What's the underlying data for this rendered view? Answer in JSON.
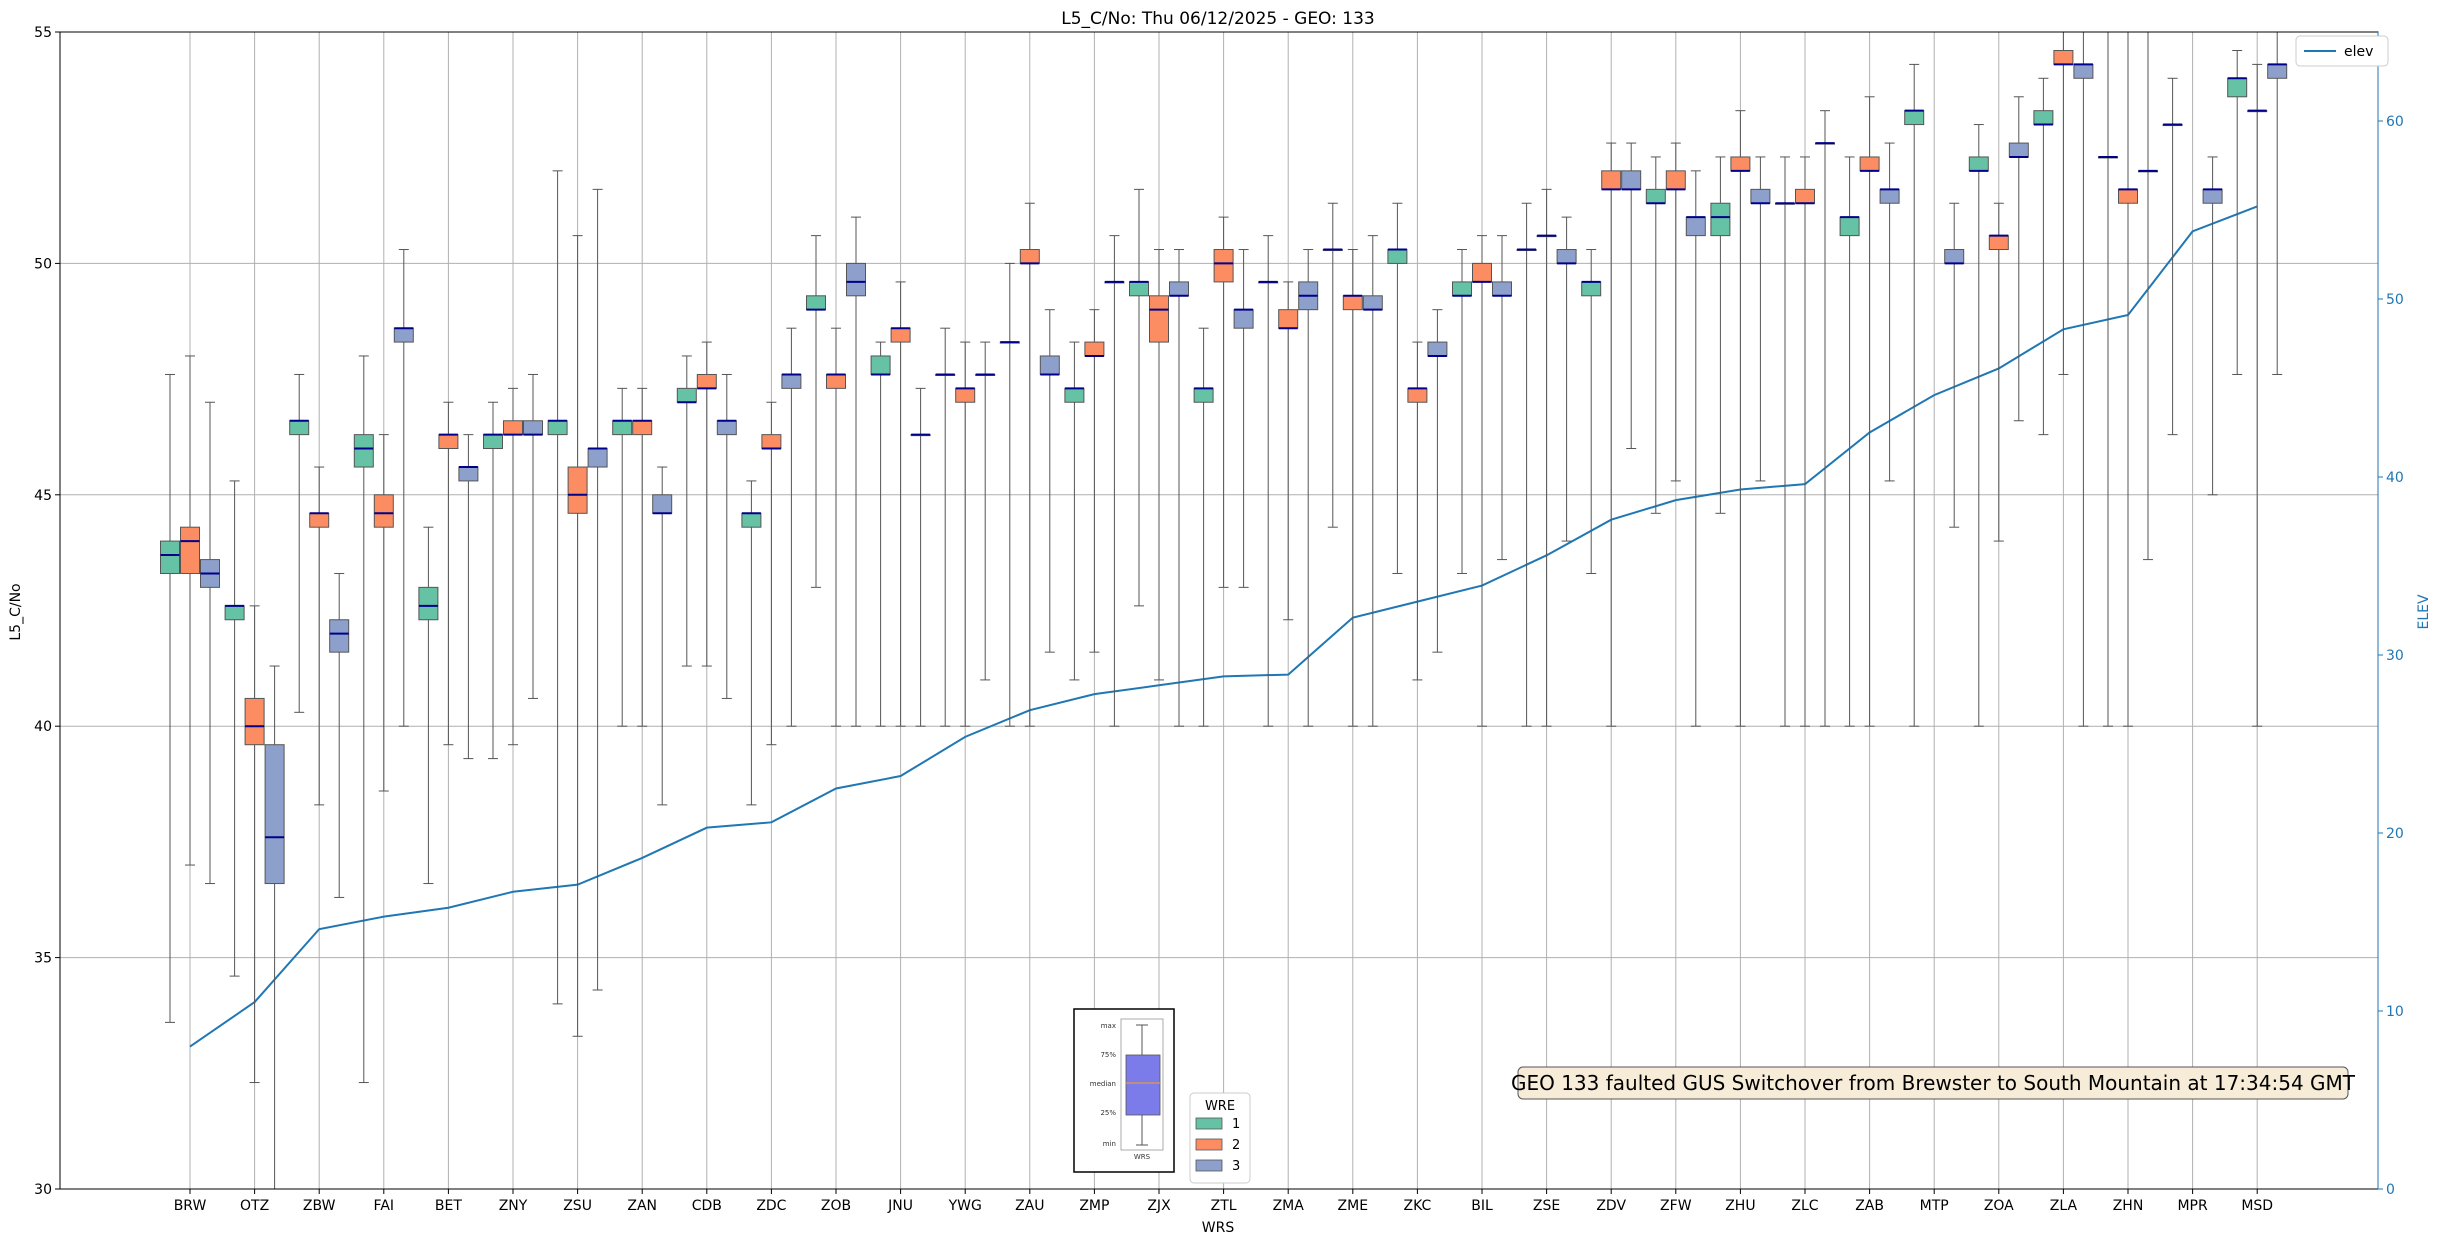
{
  "chart_data": {
    "type": "box",
    "title": "L5_C/No: Thu 06/12/2025 - GEO: 133",
    "xlabel": "WRS",
    "ylabel": "L5_C/No",
    "ylabel_right": "ELEV",
    "ylim": [
      30,
      55
    ],
    "ylim_right": [
      0,
      65
    ],
    "yticks": [
      30,
      35,
      40,
      45,
      50,
      55
    ],
    "yticks_right": [
      0,
      10,
      20,
      30,
      40,
      50,
      60
    ],
    "grid": true,
    "categories": [
      "BRW",
      "OTZ",
      "ZBW",
      "FAI",
      "BET",
      "ZNY",
      "ZSU",
      "ZAN",
      "CDB",
      "ZDC",
      "ZOB",
      "JNU",
      "YWG",
      "ZAU",
      "ZMP",
      "ZJX",
      "ZTL",
      "ZMA",
      "ZME",
      "ZKC",
      "BIL",
      "ZSE",
      "ZDV",
      "ZFW",
      "ZHU",
      "ZLC",
      "ZAB",
      "MTP",
      "ZOA",
      "ZLA",
      "ZHN",
      "MPR",
      "MSD"
    ],
    "wre_colors": {
      "1": "#66c2a5",
      "2": "#fc8d62",
      "3": "#8da0cb"
    },
    "median_color": "#00008b",
    "boxes": [
      {
        "wrs": "BRW",
        "wre": 1,
        "min": 33.6,
        "q1": 43.3,
        "median": 43.7,
        "q3": 44.0,
        "max": 47.6
      },
      {
        "wrs": "BRW",
        "wre": 2,
        "min": 37.0,
        "q1": 43.3,
        "median": 44.0,
        "q3": 44.3,
        "max": 48.0
      },
      {
        "wrs": "BRW",
        "wre": 3,
        "min": 36.6,
        "q1": 43.0,
        "median": 43.3,
        "q3": 43.6,
        "max": 47.0
      },
      {
        "wrs": "OTZ",
        "wre": 1,
        "min": 34.6,
        "q1": 42.3,
        "median": 42.6,
        "q3": 42.6,
        "max": 45.3
      },
      {
        "wrs": "OTZ",
        "wre": 2,
        "min": 32.3,
        "q1": 39.6,
        "median": 40.0,
        "q3": 40.6,
        "max": 42.6
      },
      {
        "wrs": "OTZ",
        "wre": 3,
        "min": 30.0,
        "q1": 36.6,
        "median": 37.6,
        "q3": 39.6,
        "max": 41.3
      },
      {
        "wrs": "ZBW",
        "wre": 1,
        "min": 40.3,
        "q1": 46.3,
        "median": 46.6,
        "q3": 46.6,
        "max": 47.6
      },
      {
        "wrs": "ZBW",
        "wre": 2,
        "min": 38.3,
        "q1": 44.3,
        "median": 44.6,
        "q3": 44.6,
        "max": 45.6
      },
      {
        "wrs": "ZBW",
        "wre": 3,
        "min": 36.3,
        "q1": 41.6,
        "median": 42.0,
        "q3": 42.3,
        "max": 43.3
      },
      {
        "wrs": "FAI",
        "wre": 1,
        "min": 32.3,
        "q1": 45.6,
        "median": 46.0,
        "q3": 46.3,
        "max": 48.0
      },
      {
        "wrs": "FAI",
        "wre": 2,
        "min": 38.6,
        "q1": 44.3,
        "median": 44.6,
        "q3": 45.0,
        "max": 46.3
      },
      {
        "wrs": "FAI",
        "wre": 3,
        "min": 40.0,
        "q1": 48.3,
        "median": 48.6,
        "q3": 48.6,
        "max": 50.3
      },
      {
        "wrs": "BET",
        "wre": 1,
        "min": 36.6,
        "q1": 42.3,
        "median": 42.6,
        "q3": 43.0,
        "max": 44.3
      },
      {
        "wrs": "BET",
        "wre": 2,
        "min": 39.6,
        "q1": 46.0,
        "median": 46.3,
        "q3": 46.3,
        "max": 47.0
      },
      {
        "wrs": "BET",
        "wre": 3,
        "min": 39.3,
        "q1": 45.3,
        "median": 45.6,
        "q3": 45.6,
        "max": 46.3
      },
      {
        "wrs": "ZNY",
        "wre": 1,
        "min": 39.3,
        "q1": 46.0,
        "median": 46.3,
        "q3": 46.3,
        "max": 47.0
      },
      {
        "wrs": "ZNY",
        "wre": 2,
        "min": 39.6,
        "q1": 46.3,
        "median": 46.3,
        "q3": 46.6,
        "max": 47.3
      },
      {
        "wrs": "ZNY",
        "wre": 3,
        "min": 40.6,
        "q1": 46.3,
        "median": 46.3,
        "q3": 46.6,
        "max": 47.6
      },
      {
        "wrs": "ZSU",
        "wre": 1,
        "min": 34.0,
        "q1": 46.3,
        "median": 46.6,
        "q3": 46.6,
        "max": 52.0
      },
      {
        "wrs": "ZSU",
        "wre": 2,
        "min": 33.3,
        "q1": 44.6,
        "median": 45.0,
        "q3": 45.6,
        "max": 50.6
      },
      {
        "wrs": "ZSU",
        "wre": 3,
        "min": 34.3,
        "q1": 45.6,
        "median": 46.0,
        "q3": 46.0,
        "max": 51.6
      },
      {
        "wrs": "ZAN",
        "wre": 1,
        "min": 40.0,
        "q1": 46.3,
        "median": 46.6,
        "q3": 46.6,
        "max": 47.3
      },
      {
        "wrs": "ZAN",
        "wre": 2,
        "min": 40.0,
        "q1": 46.3,
        "median": 46.6,
        "q3": 46.6,
        "max": 47.3
      },
      {
        "wrs": "ZAN",
        "wre": 3,
        "min": 38.3,
        "q1": 44.6,
        "median": 44.6,
        "q3": 45.0,
        "max": 45.6
      },
      {
        "wrs": "CDB",
        "wre": 1,
        "min": 41.3,
        "q1": 47.0,
        "median": 47.0,
        "q3": 47.3,
        "max": 48.0
      },
      {
        "wrs": "CDB",
        "wre": 2,
        "min": 41.3,
        "q1": 47.3,
        "median": 47.3,
        "q3": 47.6,
        "max": 48.3
      },
      {
        "wrs": "CDB",
        "wre": 3,
        "min": 40.6,
        "q1": 46.3,
        "median": 46.6,
        "q3": 46.6,
        "max": 47.6
      },
      {
        "wrs": "ZDC",
        "wre": 1,
        "min": 38.3,
        "q1": 44.3,
        "median": 44.6,
        "q3": 44.6,
        "max": 45.3
      },
      {
        "wrs": "ZDC",
        "wre": 2,
        "min": 39.6,
        "q1": 46.0,
        "median": 46.0,
        "q3": 46.3,
        "max": 47.0
      },
      {
        "wrs": "ZDC",
        "wre": 3,
        "min": 40.0,
        "q1": 47.3,
        "median": 47.6,
        "q3": 47.6,
        "max": 48.6
      },
      {
        "wrs": "ZOB",
        "wre": 1,
        "min": 43.0,
        "q1": 49.0,
        "median": 49.0,
        "q3": 49.3,
        "max": 50.6
      },
      {
        "wrs": "ZOB",
        "wre": 2,
        "min": 40.0,
        "q1": 47.3,
        "median": 47.6,
        "q3": 47.6,
        "max": 48.6
      },
      {
        "wrs": "ZOB",
        "wre": 3,
        "min": 40.0,
        "q1": 49.3,
        "median": 49.6,
        "q3": 50.0,
        "max": 51.0
      },
      {
        "wrs": "JNU",
        "wre": 1,
        "min": 40.0,
        "q1": 47.6,
        "median": 47.6,
        "q3": 48.0,
        "max": 48.3
      },
      {
        "wrs": "JNU",
        "wre": 2,
        "min": 40.0,
        "q1": 48.3,
        "median": 48.6,
        "q3": 48.6,
        "max": 49.6
      },
      {
        "wrs": "JNU",
        "wre": 3,
        "min": 40.0,
        "q1": 46.3,
        "median": 46.3,
        "q3": 46.3,
        "max": 47.3
      },
      {
        "wrs": "YWG",
        "wre": 1,
        "min": 40.0,
        "q1": 47.6,
        "median": 47.6,
        "q3": 47.6,
        "max": 48.6
      },
      {
        "wrs": "YWG",
        "wre": 2,
        "min": 40.0,
        "q1": 47.0,
        "median": 47.3,
        "q3": 47.3,
        "max": 48.3
      },
      {
        "wrs": "YWG",
        "wre": 3,
        "min": 41.0,
        "q1": 47.6,
        "median": 47.6,
        "q3": 47.6,
        "max": 48.3
      },
      {
        "wrs": "ZAU",
        "wre": 1,
        "min": 40.0,
        "q1": 48.3,
        "median": 48.3,
        "q3": 48.3,
        "max": 50.0
      },
      {
        "wrs": "ZAU",
        "wre": 2,
        "min": 40.0,
        "q1": 50.0,
        "median": 50.0,
        "q3": 50.3,
        "max": 51.3
      },
      {
        "wrs": "ZAU",
        "wre": 3,
        "min": 41.6,
        "q1": 47.6,
        "median": 47.6,
        "q3": 48.0,
        "max": 49.0
      },
      {
        "wrs": "ZMP",
        "wre": 1,
        "min": 41.0,
        "q1": 47.0,
        "median": 47.3,
        "q3": 47.3,
        "max": 48.3
      },
      {
        "wrs": "ZMP",
        "wre": 2,
        "min": 41.6,
        "q1": 48.0,
        "median": 48.0,
        "q3": 48.3,
        "max": 49.0
      },
      {
        "wrs": "ZMP",
        "wre": 3,
        "min": 40.0,
        "q1": 49.6,
        "median": 49.6,
        "q3": 49.6,
        "max": 50.6
      },
      {
        "wrs": "ZJX",
        "wre": 1,
        "min": 42.6,
        "q1": 49.3,
        "median": 49.6,
        "q3": 49.6,
        "max": 51.6
      },
      {
        "wrs": "ZJX",
        "wre": 2,
        "min": 41.0,
        "q1": 48.3,
        "median": 49.0,
        "q3": 49.3,
        "max": 50.3
      },
      {
        "wrs": "ZJX",
        "wre": 3,
        "min": 40.0,
        "q1": 49.3,
        "median": 49.3,
        "q3": 49.6,
        "max": 50.3
      },
      {
        "wrs": "ZTL",
        "wre": 1,
        "min": 40.0,
        "q1": 47.0,
        "median": 47.3,
        "q3": 47.3,
        "max": 48.6
      },
      {
        "wrs": "ZTL",
        "wre": 2,
        "min": 43.0,
        "q1": 49.6,
        "median": 50.0,
        "q3": 50.3,
        "max": 51.0
      },
      {
        "wrs": "ZTL",
        "wre": 3,
        "min": 43.0,
        "q1": 48.6,
        "median": 49.0,
        "q3": 49.0,
        "max": 50.3
      },
      {
        "wrs": "ZMA",
        "wre": 1,
        "min": 40.0,
        "q1": 49.6,
        "median": 49.6,
        "q3": 49.6,
        "max": 50.6
      },
      {
        "wrs": "ZMA",
        "wre": 2,
        "min": 42.3,
        "q1": 48.6,
        "median": 48.6,
        "q3": 49.0,
        "max": 49.6
      },
      {
        "wrs": "ZMA",
        "wre": 3,
        "min": 40.0,
        "q1": 49.0,
        "median": 49.3,
        "q3": 49.6,
        "max": 50.3
      },
      {
        "wrs": "ZME",
        "wre": 1,
        "min": 44.3,
        "q1": 50.3,
        "median": 50.3,
        "q3": 50.3,
        "max": 51.3
      },
      {
        "wrs": "ZME",
        "wre": 2,
        "min": 40.0,
        "q1": 49.0,
        "median": 49.3,
        "q3": 49.3,
        "max": 50.3
      },
      {
        "wrs": "ZME",
        "wre": 3,
        "min": 40.0,
        "q1": 49.0,
        "median": 49.0,
        "q3": 49.3,
        "max": 50.6
      },
      {
        "wrs": "ZKC",
        "wre": 1,
        "min": 43.3,
        "q1": 50.0,
        "median": 50.3,
        "q3": 50.3,
        "max": 51.3
      },
      {
        "wrs": "ZKC",
        "wre": 2,
        "min": 41.0,
        "q1": 47.0,
        "median": 47.3,
        "q3": 47.3,
        "max": 48.3
      },
      {
        "wrs": "ZKC",
        "wre": 3,
        "min": 41.6,
        "q1": 48.0,
        "median": 48.0,
        "q3": 48.3,
        "max": 49.0
      },
      {
        "wrs": "BIL",
        "wre": 1,
        "min": 43.3,
        "q1": 49.3,
        "median": 49.3,
        "q3": 49.6,
        "max": 50.3
      },
      {
        "wrs": "BIL",
        "wre": 2,
        "min": 40.0,
        "q1": 49.6,
        "median": 49.6,
        "q3": 50.0,
        "max": 50.6
      },
      {
        "wrs": "BIL",
        "wre": 3,
        "min": 43.6,
        "q1": 49.3,
        "median": 49.3,
        "q3": 49.6,
        "max": 50.6
      },
      {
        "wrs": "ZSE",
        "wre": 1,
        "min": 40.0,
        "q1": 50.3,
        "median": 50.3,
        "q3": 50.3,
        "max": 51.3
      },
      {
        "wrs": "ZSE",
        "wre": 2,
        "min": 40.0,
        "q1": 50.6,
        "median": 50.6,
        "q3": 50.6,
        "max": 51.6
      },
      {
        "wrs": "ZSE",
        "wre": 3,
        "min": 44.0,
        "q1": 50.0,
        "median": 50.0,
        "q3": 50.3,
        "max": 51.0
      },
      {
        "wrs": "ZDV",
        "wre": 1,
        "min": 43.3,
        "q1": 49.3,
        "median": 49.6,
        "q3": 49.6,
        "max": 50.3
      },
      {
        "wrs": "ZDV",
        "wre": 2,
        "min": 40.0,
        "q1": 51.6,
        "median": 51.6,
        "q3": 52.0,
        "max": 52.6
      },
      {
        "wrs": "ZDV",
        "wre": 3,
        "min": 46.0,
        "q1": 51.6,
        "median": 51.6,
        "q3": 52.0,
        "max": 52.6
      },
      {
        "wrs": "ZFW",
        "wre": 1,
        "min": 44.6,
        "q1": 51.3,
        "median": 51.3,
        "q3": 51.6,
        "max": 52.3
      },
      {
        "wrs": "ZFW",
        "wre": 2,
        "min": 45.3,
        "q1": 51.6,
        "median": 51.6,
        "q3": 52.0,
        "max": 52.6
      },
      {
        "wrs": "ZFW",
        "wre": 3,
        "min": 40.0,
        "q1": 50.6,
        "median": 51.0,
        "q3": 51.0,
        "max": 52.0
      },
      {
        "wrs": "ZHU",
        "wre": 1,
        "min": 44.6,
        "q1": 50.6,
        "median": 51.0,
        "q3": 51.3,
        "max": 52.3
      },
      {
        "wrs": "ZHU",
        "wre": 2,
        "min": 40.0,
        "q1": 52.0,
        "median": 52.0,
        "q3": 52.3,
        "max": 53.3
      },
      {
        "wrs": "ZHU",
        "wre": 3,
        "min": 45.3,
        "q1": 51.3,
        "median": 51.3,
        "q3": 51.6,
        "max": 52.3
      },
      {
        "wrs": "ZLC",
        "wre": 1,
        "min": 40.0,
        "q1": 51.3,
        "median": 51.3,
        "q3": 51.3,
        "max": 52.3
      },
      {
        "wrs": "ZLC",
        "wre": 2,
        "min": 40.0,
        "q1": 51.3,
        "median": 51.3,
        "q3": 51.6,
        "max": 52.3
      },
      {
        "wrs": "ZLC",
        "wre": 3,
        "min": 40.0,
        "q1": 52.6,
        "median": 52.6,
        "q3": 52.6,
        "max": 53.3
      },
      {
        "wrs": "ZAB",
        "wre": 1,
        "min": 40.0,
        "q1": 50.6,
        "median": 51.0,
        "q3": 51.0,
        "max": 52.3
      },
      {
        "wrs": "ZAB",
        "wre": 2,
        "min": 40.0,
        "q1": 52.0,
        "median": 52.0,
        "q3": 52.3,
        "max": 53.6
      },
      {
        "wrs": "ZAB",
        "wre": 3,
        "min": 45.3,
        "q1": 51.3,
        "median": 51.6,
        "q3": 51.6,
        "max": 52.6
      },
      {
        "wrs": "MTP",
        "wre": 1,
        "min": 40.0,
        "q1": 53.0,
        "median": 53.3,
        "q3": 53.3,
        "max": 54.3
      },
      {
        "wrs": "MTP",
        "wre": 3,
        "min": 44.3,
        "q1": 50.0,
        "median": 50.0,
        "q3": 50.3,
        "max": 51.3
      },
      {
        "wrs": "ZOA",
        "wre": 1,
        "min": 40.0,
        "q1": 52.0,
        "median": 52.0,
        "q3": 52.3,
        "max": 53.0
      },
      {
        "wrs": "ZOA",
        "wre": 2,
        "min": 44.0,
        "q1": 50.3,
        "median": 50.6,
        "q3": 50.6,
        "max": 51.3
      },
      {
        "wrs": "ZOA",
        "wre": 3,
        "min": 46.6,
        "q1": 52.3,
        "median": 52.3,
        "q3": 52.6,
        "max": 53.6
      },
      {
        "wrs": "ZLA",
        "wre": 1,
        "min": 46.3,
        "q1": 53.0,
        "median": 53.0,
        "q3": 53.3,
        "max": 54.0
      },
      {
        "wrs": "ZLA",
        "wre": 2,
        "min": 47.6,
        "q1": 54.3,
        "median": 54.3,
        "q3": 54.6,
        "max": 55.0
      },
      {
        "wrs": "ZLA",
        "wre": 3,
        "min": 40.0,
        "q1": 54.0,
        "median": 54.3,
        "q3": 54.3,
        "max": 55.0
      },
      {
        "wrs": "ZHN",
        "wre": 1,
        "min": 40.0,
        "q1": 52.3,
        "median": 52.3,
        "q3": 52.3,
        "max": 55.0
      },
      {
        "wrs": "ZHN",
        "wre": 2,
        "min": 40.0,
        "q1": 51.3,
        "median": 51.6,
        "q3": 51.6,
        "max": 55.0
      },
      {
        "wrs": "ZHN",
        "wre": 3,
        "min": 43.6,
        "q1": 52.0,
        "median": 52.0,
        "q3": 52.0,
        "max": 55.0
      },
      {
        "wrs": "MPR",
        "wre": 1,
        "min": 46.3,
        "q1": 53.0,
        "median": 53.0,
        "q3": 53.0,
        "max": 54.0
      },
      {
        "wrs": "MPR",
        "wre": 3,
        "min": 45.0,
        "q1": 51.3,
        "median": 51.6,
        "q3": 51.6,
        "max": 52.3
      },
      {
        "wrs": "MSD",
        "wre": 1,
        "min": 47.6,
        "q1": 53.6,
        "median": 54.0,
        "q3": 54.0,
        "max": 54.6
      },
      {
        "wrs": "MSD",
        "wre": 2,
        "min": 40.0,
        "q1": 53.3,
        "median": 53.3,
        "q3": 53.3,
        "max": 54.3
      },
      {
        "wrs": "MSD",
        "wre": 3,
        "min": 47.6,
        "q1": 54.0,
        "median": 54.3,
        "q3": 54.3,
        "max": 55.0
      }
    ],
    "elev_series": {
      "name": "elev",
      "values": [
        8.0,
        10.5,
        14.6,
        15.3,
        15.8,
        16.7,
        17.1,
        18.6,
        20.3,
        20.6,
        22.5,
        23.2,
        25.4,
        26.9,
        27.8,
        28.3,
        28.8,
        28.9,
        32.1,
        33.0,
        33.9,
        35.6,
        37.6,
        38.7,
        39.3,
        39.6,
        42.5,
        44.6,
        46.1,
        48.3,
        49.1,
        53.8,
        55.2
      ]
    },
    "legend_elev": "elev",
    "legend_wre_title": "WRE",
    "legend_wre_entries": [
      "1",
      "2",
      "3"
    ],
    "annotation": "GEO 133 faulted GUS Switchover from Brewster to South Mountain at 17:34:54 GMT",
    "boxplot_key": {
      "labels": [
        "max",
        "75%",
        "median",
        "25%",
        "min"
      ],
      "xlabel": "WRS"
    }
  }
}
